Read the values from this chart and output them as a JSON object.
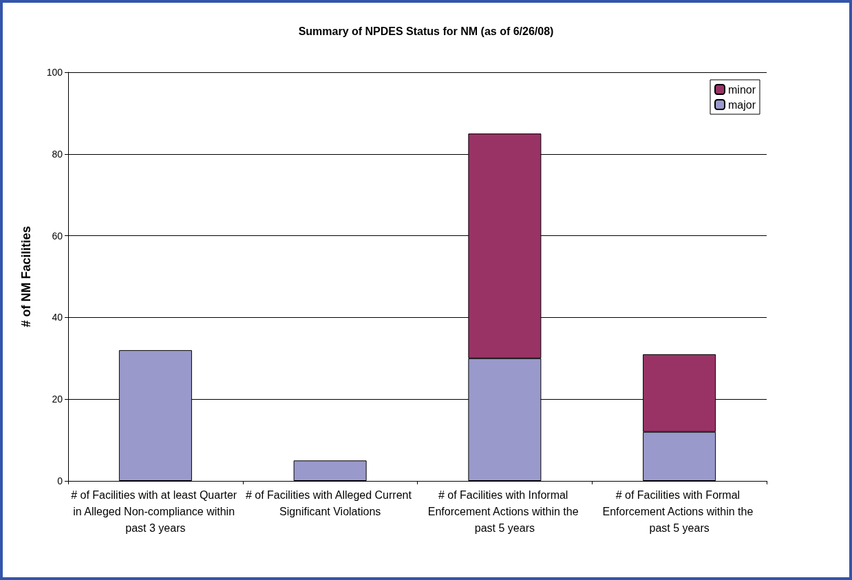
{
  "chart_data": {
    "type": "bar",
    "title": "Summary of NPDES Status for NM (as of 6/26/08)",
    "ylabel": "# of NM Facilities",
    "categories": [
      "# of Facilities with at least Quarter in Alleged Non-compliance within past 3 years",
      "# of Facilities with Alleged Current Significant Violations",
      "# of Facilities with Informal Enforcement Actions within the past 5 years",
      "# of Facilities with Formal Enforcement Actions within the past 5 years"
    ],
    "series": [
      {
        "name": "major",
        "color": "#9999cc",
        "values": [
          32,
          5,
          30,
          12
        ]
      },
      {
        "name": "minor",
        "color": "#993366",
        "values": [
          null,
          null,
          55,
          19
        ]
      }
    ],
    "stacked": true,
    "ylim": [
      0,
      100
    ],
    "yticks": [
      0,
      20,
      40,
      60,
      80,
      100
    ],
    "grid": "y",
    "legend": "top right"
  }
}
